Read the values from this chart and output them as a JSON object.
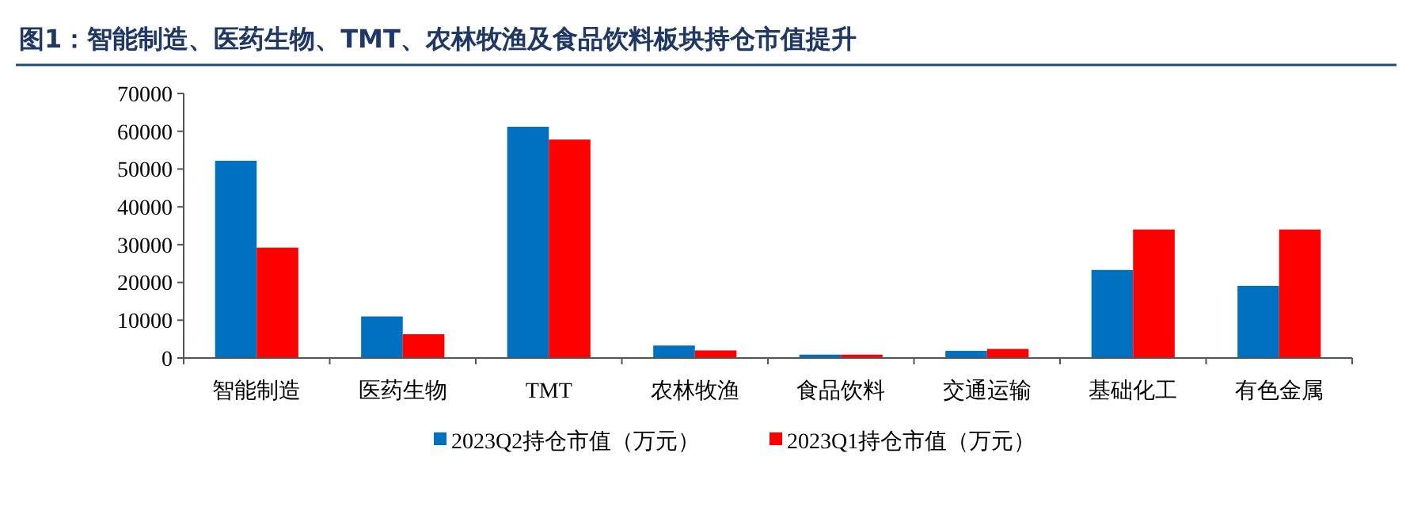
{
  "chart_data": {
    "type": "bar",
    "title": "图1：智能制造、医药生物、TMT、农林牧渔及食品饮料板块持仓市值提升",
    "categories": [
      "智能制造",
      "医药生物",
      "TMT",
      "农林牧渔",
      "食品饮料",
      "交通运输",
      "基础化工",
      "有色金属"
    ],
    "series": [
      {
        "name": "2023Q2持仓市值（万元）",
        "color": "#0070c0",
        "values": [
          52200,
          11000,
          61200,
          3300,
          900,
          1900,
          23300,
          19100
        ]
      },
      {
        "name": "2023Q1持仓市值（万元）",
        "color": "#ff0000",
        "values": [
          29200,
          6300,
          57800,
          2000,
          900,
          2400,
          34000,
          34000
        ]
      }
    ],
    "ylim": [
      0,
      70000
    ],
    "yticks": [
      0,
      10000,
      20000,
      30000,
      40000,
      50000,
      60000,
      70000
    ],
    "grid": false,
    "legend": "bottom"
  }
}
